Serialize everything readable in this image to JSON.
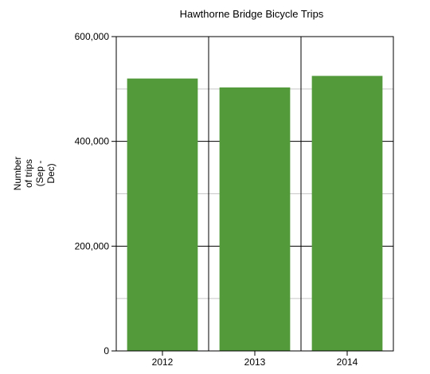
{
  "chart_data": {
    "type": "bar",
    "title": "Hawthorne Bridge Bicycle Trips",
    "xlabel": "",
    "ylabel_lines": [
      "Number",
      "of trips",
      "(Sep -",
      "Dec)"
    ],
    "categories": [
      "2012",
      "2013",
      "2014"
    ],
    "values": [
      520000,
      503000,
      525000
    ],
    "ylim": [
      0,
      600000
    ],
    "yticks": [
      0,
      200000,
      400000,
      600000
    ],
    "ytick_labels": [
      "0",
      "200,000",
      "400,000",
      "600,000"
    ],
    "minor_grid_step": 100000,
    "grid": true,
    "bar_color": "#529a3a",
    "grid_color": "#c8c8c8",
    "axis_color": "#000000"
  }
}
